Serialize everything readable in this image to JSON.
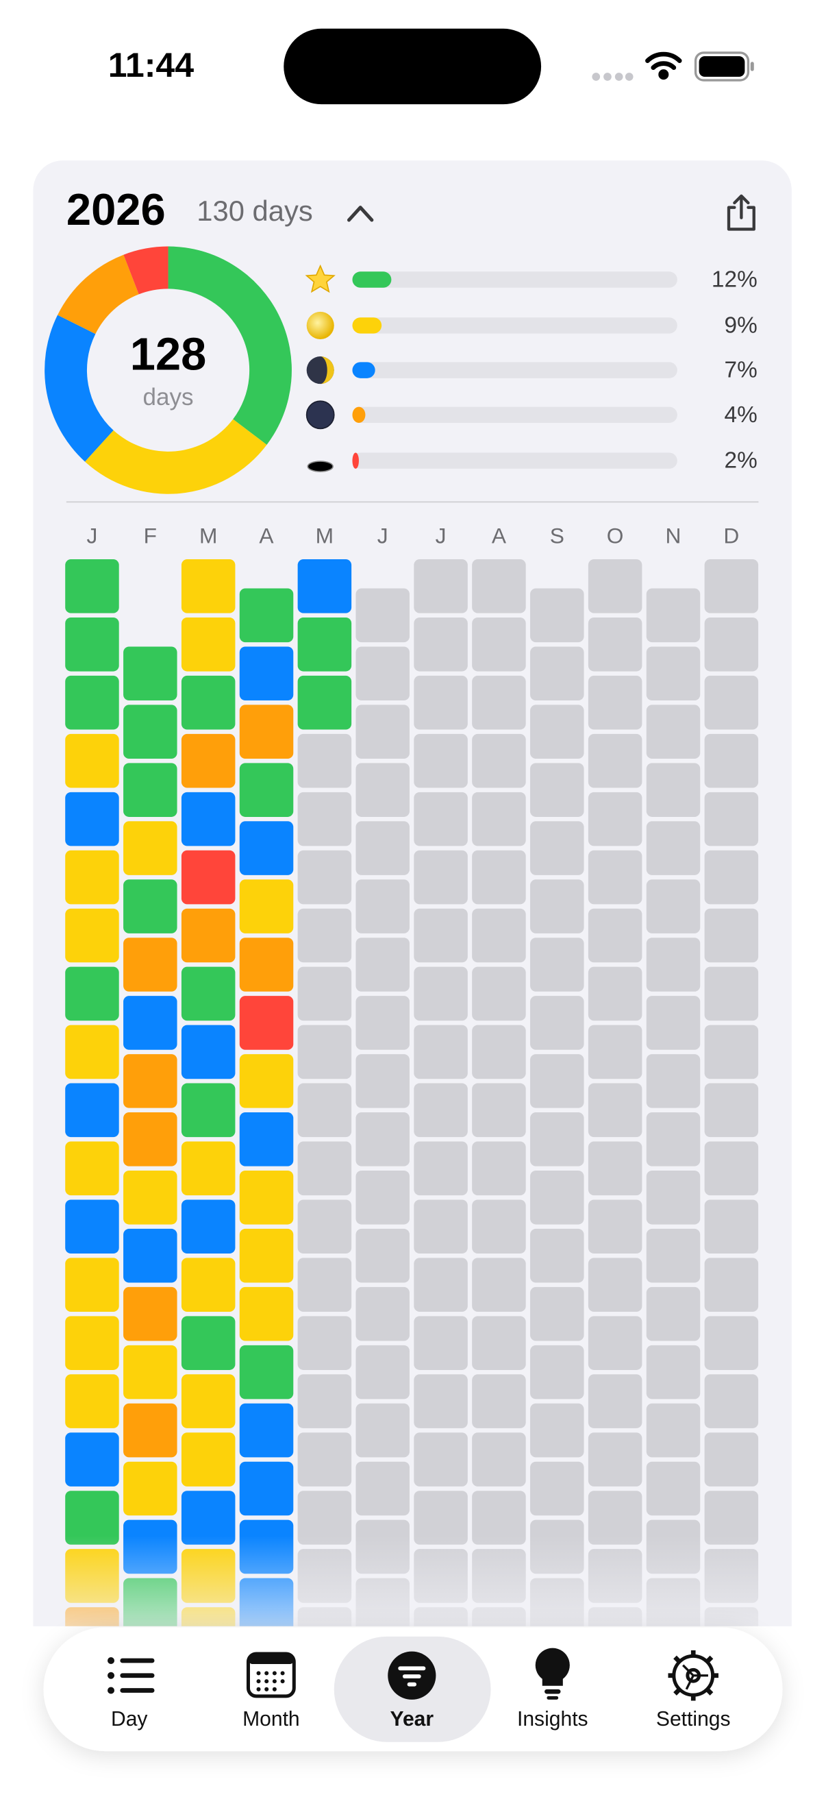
{
  "status_bar": {
    "time": "11:44"
  },
  "header": {
    "year": "2026",
    "days_label": "130 days"
  },
  "summary": {
    "total": 128,
    "unit": "days"
  },
  "stats": [
    {
      "color": "#34c759",
      "value": 12,
      "value_label": "12%"
    },
    {
      "color": "#fdd20a",
      "value": 9,
      "value_label": "9%"
    },
    {
      "color": "#0a84ff",
      "value": 7,
      "value_label": "7%"
    },
    {
      "color": "#ff9f0a",
      "value": 4,
      "value_label": "4%"
    },
    {
      "color": "#ff453a",
      "value": 2,
      "value_label": "2%"
    }
  ],
  "calendar": {
    "empty_color": "#d1d1d6",
    "months": [
      {
        "label": "J",
        "days": [
          0,
          0,
          0,
          1,
          2,
          1,
          1,
          0,
          1,
          2,
          1,
          2,
          1,
          1,
          1,
          2,
          0,
          1,
          3
        ]
      },
      {
        "label": "F",
        "days": [
          0,
          0,
          0,
          1,
          0,
          3,
          2,
          3,
          3,
          1,
          2,
          3,
          1,
          3,
          1,
          2,
          0
        ]
      },
      {
        "label": "M",
        "days": [
          1,
          1,
          0,
          3,
          2,
          4,
          3,
          0,
          2,
          0,
          1,
          2,
          1,
          0,
          1,
          1,
          2,
          1,
          1
        ]
      },
      {
        "label": "A",
        "days": [
          0,
          2,
          3,
          0,
          2,
          1,
          3,
          4,
          1,
          2,
          1,
          1,
          1,
          0,
          2,
          2,
          2,
          2
        ]
      },
      {
        "label": "M",
        "days": [
          2,
          0,
          0
        ]
      },
      {
        "label": "J",
        "days": []
      },
      {
        "label": "J",
        "days": []
      },
      {
        "label": "A",
        "days": []
      },
      {
        "label": "S",
        "days": []
      },
      {
        "label": "O",
        "days": []
      },
      {
        "label": "N",
        "days": []
      },
      {
        "label": "D",
        "days": []
      }
    ]
  },
  "tabs": [
    {
      "label": "Day"
    },
    {
      "label": "Month"
    },
    {
      "label": "Year",
      "selected": true
    },
    {
      "label": "Insights"
    },
    {
      "label": "Settings"
    }
  ]
}
